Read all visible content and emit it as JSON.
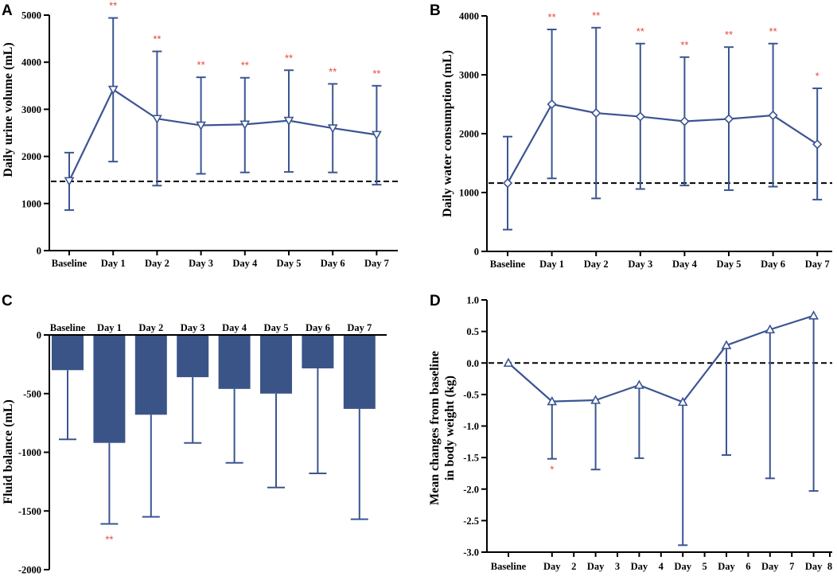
{
  "colors": {
    "series": "#3b5592",
    "bar_fill": "#3a5488",
    "significance": "#e8463c",
    "axis": "#000000",
    "reference_line": "#000000"
  },
  "chart_data": [
    {
      "panel": "A",
      "type": "line",
      "categories": [
        "Baseline",
        "Day 1",
        "Day 2",
        "Day 3",
        "Day 4",
        "Day 5",
        "Day 6",
        "Day 7"
      ],
      "values": [
        1480,
        3420,
        2800,
        2660,
        2680,
        2760,
        2600,
        2460
      ],
      "error_upper": [
        2080,
        4940,
        4230,
        3680,
        3670,
        3830,
        3540,
        3500
      ],
      "error_lower": [
        860,
        1890,
        1380,
        1630,
        1660,
        1670,
        1660,
        1400
      ],
      "marker": "triangle-down",
      "reference_line": 1470,
      "significance": [
        "",
        "**",
        "**",
        "**",
        "**",
        "**",
        "**",
        "**"
      ],
      "ylim": [
        0,
        5000
      ],
      "yticks": [
        0,
        1000,
        2000,
        3000,
        4000,
        5000
      ],
      "ytick_labels": [
        "0",
        "1000",
        "2000",
        "3000",
        "4000",
        "5000"
      ],
      "ylabel": "Daily urine volume (mL)",
      "xlabel": ""
    },
    {
      "panel": "B",
      "type": "line",
      "categories": [
        "Baseline",
        "Day 1",
        "Day 2",
        "Day 3",
        "Day 4",
        "Day 5",
        "Day 6",
        "Day 7"
      ],
      "values": [
        1160,
        2500,
        2350,
        2290,
        2210,
        2250,
        2310,
        1820
      ],
      "error_upper": [
        1950,
        3770,
        3800,
        3530,
        3300,
        3470,
        3530,
        2770
      ],
      "error_lower": [
        370,
        1240,
        900,
        1060,
        1120,
        1040,
        1100,
        880
      ],
      "marker": "diamond",
      "reference_line": 1160,
      "significance": [
        "",
        "**",
        "**",
        "**",
        "**",
        "**",
        "**",
        "*"
      ],
      "ylim": [
        0,
        4000
      ],
      "yticks": [
        0,
        1000,
        2000,
        3000,
        4000
      ],
      "ytick_labels": [
        "0",
        "1000",
        "2000",
        "3000",
        "4000"
      ],
      "ylabel": "Daily water consumption (mL)",
      "xlabel": ""
    },
    {
      "panel": "C",
      "type": "bar",
      "categories": [
        "Baseline",
        "Day 1",
        "Day 2",
        "Day 3",
        "Day 4",
        "Day 5",
        "Day 6",
        "Day 7"
      ],
      "values": [
        -300,
        -920,
        -680,
        -360,
        -460,
        -500,
        -285,
        -630
      ],
      "error_lower": [
        -890,
        -1610,
        -1550,
        -920,
        -1090,
        -1300,
        -1180,
        -1570
      ],
      "significance": [
        "",
        "**",
        "",
        "",
        "",
        "",
        "",
        ""
      ],
      "ylim": [
        -2000,
        0
      ],
      "yticks": [
        0,
        -500,
        -1000,
        -1500,
        -2000
      ],
      "ytick_labels": [
        "0",
        "-500",
        "-1000",
        "-1500",
        "-2000"
      ],
      "ylabel": "Fluid balance (mL)",
      "xlabel": ""
    },
    {
      "panel": "D",
      "type": "line",
      "x_positions": [
        0,
        1,
        2,
        3,
        4,
        5,
        6,
        7
      ],
      "values": [
        0.0,
        -0.61,
        -0.59,
        -0.35,
        -0.62,
        0.28,
        0.53,
        0.75
      ],
      "error_bottom": [
        0.0,
        -1.52,
        -1.69,
        -1.51,
        -2.89,
        -1.46,
        -1.83,
        -2.03
      ],
      "marker": "triangle-up",
      "reference_line": 0,
      "significance": [
        "",
        "*",
        "",
        "",
        "",
        "",
        "",
        ""
      ],
      "xtick_labels": [
        {
          "text": "Baseline",
          "pos": 0
        },
        {
          "text": "Day",
          "pos": 1
        },
        {
          "text": "2",
          "pos": 1.5
        },
        {
          "text": "Day",
          "pos": 2
        },
        {
          "text": "3",
          "pos": 2.5
        },
        {
          "text": "Day",
          "pos": 3
        },
        {
          "text": "4",
          "pos": 3.5
        },
        {
          "text": "Day",
          "pos": 4
        },
        {
          "text": "5",
          "pos": 4.5
        },
        {
          "text": "Day",
          "pos": 5
        },
        {
          "text": "6",
          "pos": 5.5
        },
        {
          "text": "Day",
          "pos": 6
        },
        {
          "text": "7",
          "pos": 6.5
        },
        {
          "text": "Day",
          "pos": 7
        },
        {
          "text": "8",
          "pos": 7.5
        }
      ],
      "xlim": [
        0,
        7.5
      ],
      "ylim": [
        -3.0,
        1.0
      ],
      "yticks": [
        1.0,
        0.5,
        0.0,
        -0.5,
        -1.0,
        -1.5,
        -2.0,
        -2.5,
        -3.0
      ],
      "ytick_labels": [
        "1.0",
        "0.5",
        "0.0",
        "-0.5",
        "-1.0",
        "-1.5",
        "-2.0",
        "-2.5",
        "-3.0"
      ],
      "ylabel_line1": "Mean changes from baseline",
      "ylabel_line2": "in body weight (kg)",
      "xlabel": ""
    }
  ]
}
